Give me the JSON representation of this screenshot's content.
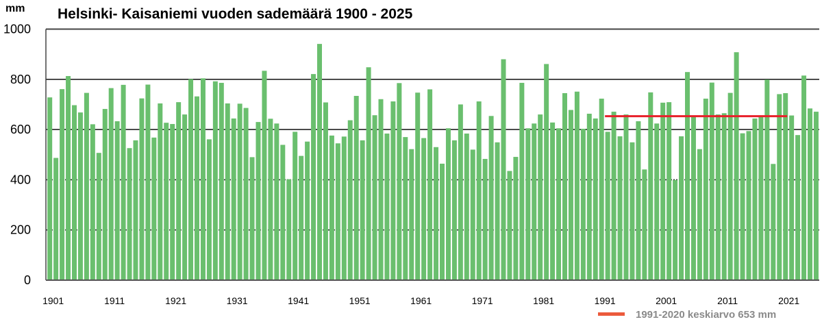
{
  "chart_data": {
    "type": "bar",
    "title": "Helsinki- Kaisaniemi vuoden sademäärä 1900 - 2025",
    "ylabel": "mm",
    "xlabel": "",
    "ylim": [
      0,
      1000
    ],
    "yticks": [
      0,
      200,
      400,
      600,
      800,
      1000
    ],
    "xtick_labels": [
      "1901",
      "1911",
      "1921",
      "1931",
      "1941",
      "1951",
      "1961",
      "1971",
      "1981",
      "1991",
      "2001",
      "2011",
      "2021"
    ],
    "grid": true,
    "bar_color": "#6abf6e",
    "first_year": 1900,
    "last_year": 2025,
    "values": [
      728,
      487,
      761,
      813,
      697,
      668,
      746,
      621,
      507,
      682,
      765,
      633,
      778,
      526,
      557,
      724,
      779,
      568,
      704,
      627,
      622,
      709,
      660,
      801,
      732,
      804,
      561,
      792,
      786,
      704,
      644,
      703,
      686,
      490,
      630,
      834,
      643,
      624,
      539,
      402,
      591,
      495,
      552,
      821,
      941,
      708,
      576,
      545,
      572,
      637,
      734,
      557,
      848,
      657,
      721,
      584,
      712,
      785,
      570,
      522,
      747,
      566,
      760,
      530,
      464,
      605,
      557,
      700,
      584,
      520,
      712,
      483,
      654,
      549,
      880,
      435,
      491,
      786,
      605,
      624,
      660,
      861,
      628,
      605,
      745,
      678,
      751,
      603,
      663,
      644,
      723,
      591,
      671,
      573,
      660,
      549,
      633,
      441,
      748,
      624,
      707,
      709,
      399,
      573,
      829,
      650,
      522,
      723,
      787,
      660,
      665,
      746,
      908,
      585,
      594,
      644,
      652,
      799,
      463,
      741,
      745,
      656,
      578,
      815,
      684,
      671
    ],
    "reference_line": {
      "label": "1991-2020 keskiarvo 653 mm",
      "value": 653,
      "from_year": 1991,
      "to_year": 2020,
      "color": "#e8202a",
      "legend_color": "#ec5a3c"
    },
    "legend_placement": "bottom-right"
  }
}
